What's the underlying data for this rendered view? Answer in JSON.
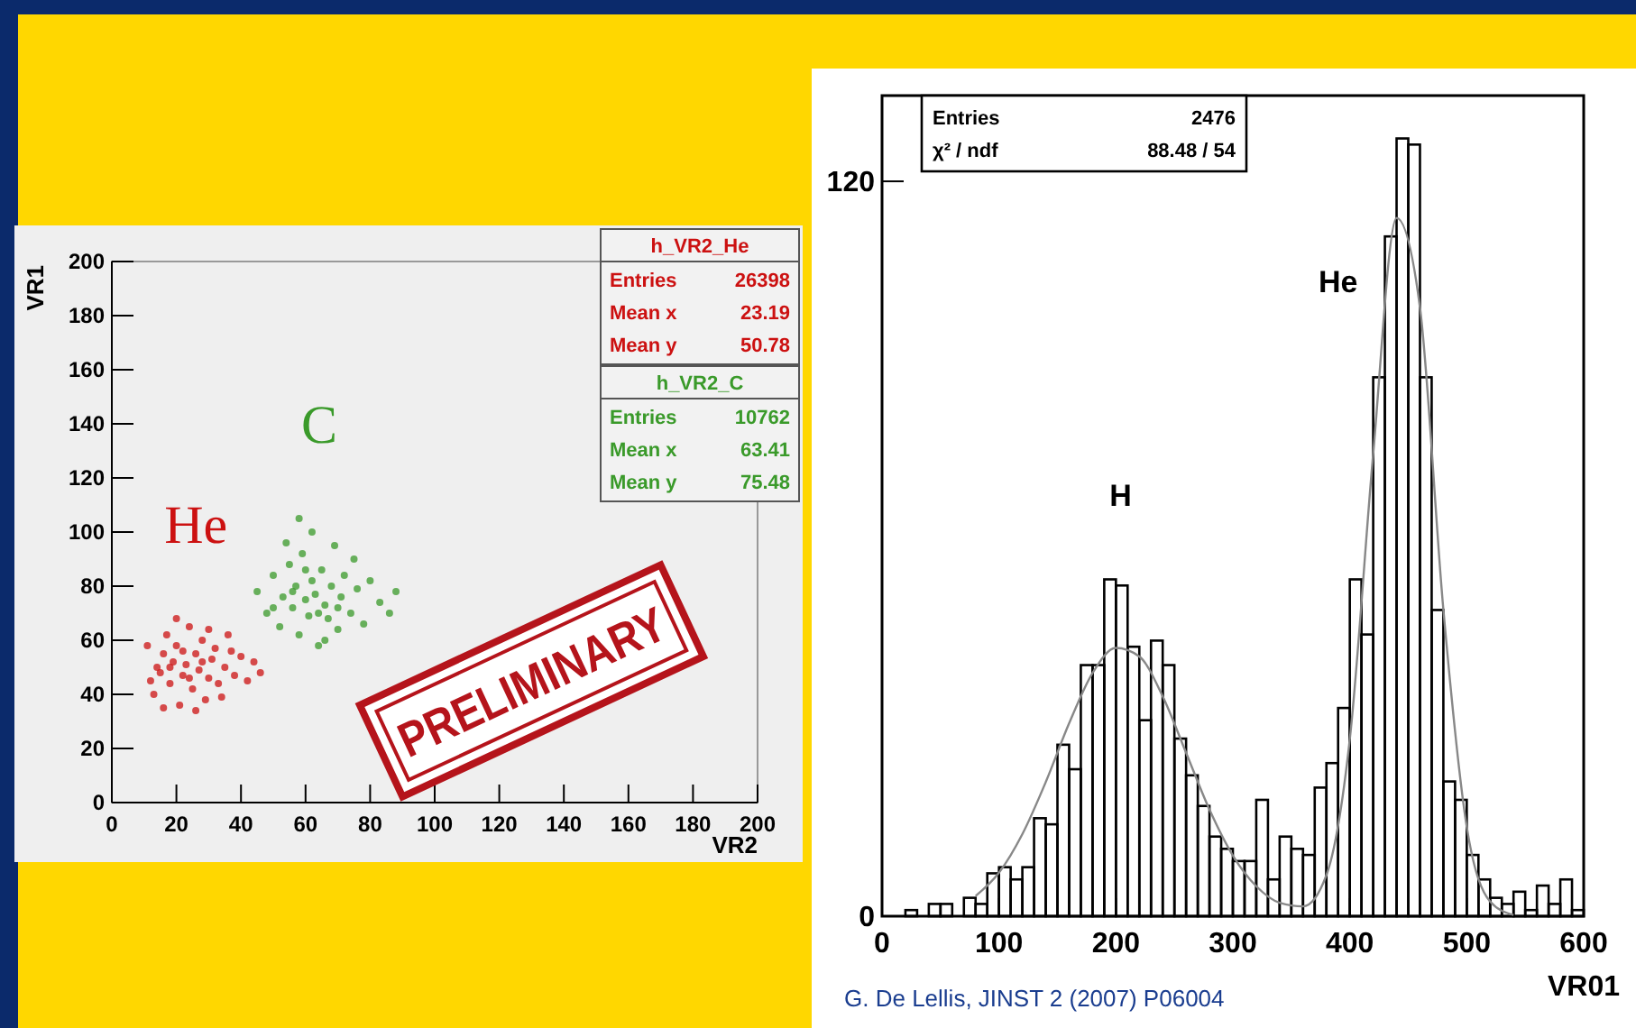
{
  "chart_data": [
    {
      "type": "scatter",
      "xlabel": "VR2",
      "ylabel": "VR1",
      "xlim": [
        0,
        200
      ],
      "ylim": [
        0,
        200
      ],
      "xticks": [
        0,
        20,
        40,
        60,
        80,
        100,
        120,
        140,
        160,
        180,
        200
      ],
      "yticks": [
        0,
        20,
        40,
        60,
        80,
        100,
        120,
        140,
        160,
        180,
        200
      ],
      "marker": "circle",
      "series": [
        {
          "name": "He",
          "color": "#cc1111",
          "x": [
            13,
            15,
            16,
            17,
            18,
            19,
            20,
            21,
            22,
            23,
            24,
            25,
            26,
            27,
            28,
            29,
            30,
            31,
            32,
            33,
            35,
            36,
            38,
            40,
            42,
            44,
            14,
            12,
            16,
            20,
            26,
            34,
            37,
            22,
            18,
            28,
            24,
            30,
            46,
            11
          ],
          "values": [
            40,
            48,
            55,
            62,
            44,
            52,
            58,
            36,
            47,
            51,
            65,
            42,
            55,
            49,
            60,
            38,
            46,
            53,
            57,
            44,
            50,
            62,
            47,
            54,
            45,
            52,
            50,
            45,
            35,
            68,
            34,
            39,
            56,
            56,
            50,
            52,
            46,
            64,
            48,
            58
          ]
        },
        {
          "name": "C",
          "color": "#3a9a2a",
          "x": [
            45,
            48,
            50,
            52,
            53,
            55,
            56,
            57,
            58,
            59,
            60,
            61,
            62,
            63,
            64,
            65,
            66,
            67,
            68,
            69,
            70,
            71,
            72,
            74,
            76,
            78,
            80,
            83,
            86,
            54,
            62,
            58,
            75,
            66,
            60,
            70,
            64,
            56,
            88,
            50
          ],
          "values": [
            78,
            70,
            84,
            65,
            76,
            88,
            72,
            80,
            62,
            92,
            75,
            69,
            82,
            77,
            58,
            86,
            73,
            68,
            80,
            95,
            64,
            76,
            84,
            70,
            79,
            66,
            82,
            74,
            70,
            96,
            100,
            105,
            90,
            60,
            86,
            72,
            70,
            78,
            78,
            72
          ]
        }
      ],
      "annotations": [
        "h_VR2_He",
        "Entries",
        "26398",
        "Mean x",
        "23.19",
        "Mean y",
        "50.78",
        "h_VR2_C",
        "Entries",
        "10762",
        "Mean x",
        "63.41",
        "Mean y",
        "75.48",
        "PRELIMINARY"
      ]
    },
    {
      "type": "histogram",
      "xlabel": "VR01",
      "xlim": [
        0,
        600
      ],
      "ylim": [
        0,
        134
      ],
      "xticks": [
        0,
        100,
        200,
        300,
        400,
        500,
        600
      ],
      "yticks": [
        0,
        120
      ],
      "bins": [
        0,
        10,
        20,
        30,
        40,
        50,
        60,
        70,
        80,
        90,
        100,
        110,
        120,
        130,
        140,
        150,
        160,
        170,
        180,
        190,
        200,
        210,
        220,
        230,
        240,
        250,
        260,
        270,
        280,
        290,
        300,
        310,
        320,
        330,
        340,
        350,
        360,
        370,
        380,
        390,
        400,
        410,
        420,
        430,
        440,
        450,
        460,
        470,
        480,
        490,
        500,
        510,
        520,
        530,
        540,
        550,
        560,
        570,
        580,
        590,
        600
      ],
      "series": [
        {
          "type": "histogram",
          "color": "#000000",
          "values": [
            0,
            0,
            1,
            0,
            2,
            2,
            0,
            3,
            2,
            7,
            8,
            6,
            8,
            16,
            15,
            28,
            24,
            41,
            41,
            55,
            54,
            44,
            32,
            45,
            41,
            29,
            23,
            18,
            13,
            11,
            9,
            9,
            19,
            6,
            13,
            11,
            10,
            21,
            25,
            34,
            55,
            46,
            88,
            111,
            127,
            126,
            88,
            50,
            22,
            19,
            10,
            6,
            3,
            2,
            4,
            1,
            5,
            2,
            6,
            1
          ]
        },
        {
          "type": "line",
          "color": "#888888",
          "x": [
            80,
            100,
            120,
            140,
            160,
            180,
            200,
            220,
            240,
            260,
            280,
            300,
            320,
            340,
            360,
            380,
            400,
            420,
            440,
            460,
            480,
            500,
            520,
            540
          ],
          "values": [
            3.3,
            7.1,
            13.4,
            21.9,
            31.5,
            39.7,
            43.8,
            42.4,
            35.9,
            26.7,
            17.4,
            9.9,
            4.9,
            2.2,
            1.6,
            6.7,
            28.9,
            75.5,
            114,
            99.4,
            50.1,
            14.6,
            2.4,
            0.2
          ]
        }
      ],
      "annotations": [
        "Entries",
        "2476",
        "χ² / ndf",
        "88.48 / 54",
        "H",
        "He",
        "G. De Lellis, JINST 2 (2007) P06004"
      ]
    }
  ]
}
